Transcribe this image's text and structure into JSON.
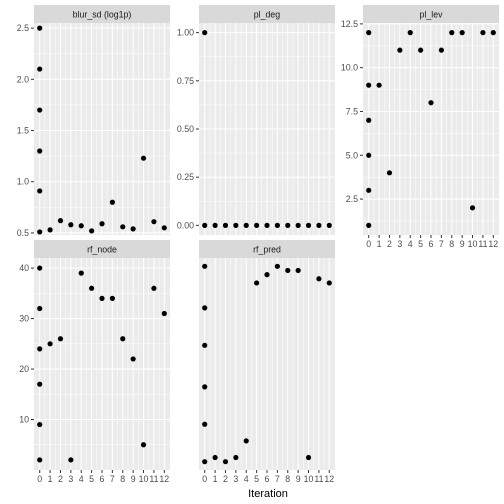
{
  "chart_data": {
    "type": "scatter",
    "layout": "facet-wrap",
    "xlabel": "Iteration",
    "x_ticks": [
      "0",
      "1",
      "2",
      "3",
      "4",
      "5",
      "6",
      "7",
      "8",
      "9",
      "10",
      "11",
      "12"
    ],
    "xlim": [
      0,
      12
    ],
    "point_color": "#000000",
    "panel_color": "#ebebeb",
    "strip_color": "#d9d9d9",
    "grid": true,
    "panels": [
      {
        "strip": "blur_sd (log1p)",
        "ylim": [
          0.48,
          2.55
        ],
        "y_ticks": [
          0.5,
          1.0,
          1.5,
          2.0,
          2.5
        ],
        "y_tick_labels": [
          "0.5",
          "1.0",
          "1.5",
          "2.0",
          "2.5"
        ],
        "points": [
          [
            0,
            2.5
          ],
          [
            0,
            2.1
          ],
          [
            0,
            1.7
          ],
          [
            0,
            1.3
          ],
          [
            0,
            0.91
          ],
          [
            0,
            0.51
          ],
          [
            1,
            0.53
          ],
          [
            2,
            0.62
          ],
          [
            3,
            0.58
          ],
          [
            4,
            0.57
          ],
          [
            5,
            0.52
          ],
          [
            6,
            0.59
          ],
          [
            7,
            0.8
          ],
          [
            8,
            0.56
          ],
          [
            9,
            0.54
          ],
          [
            10,
            1.23
          ],
          [
            11,
            0.61
          ],
          [
            12,
            0.55
          ]
        ]
      },
      {
        "strip": "pl_deg",
        "ylim": [
          -0.05,
          1.05
        ],
        "y_ticks": [
          0.0,
          0.25,
          0.5,
          0.75,
          1.0
        ],
        "y_tick_labels": [
          "0.00",
          "0.25",
          "0.50",
          "0.75",
          "1.00"
        ],
        "points": [
          [
            0,
            1
          ],
          [
            0,
            0
          ],
          [
            1,
            0
          ],
          [
            2,
            0
          ],
          [
            3,
            0
          ],
          [
            4,
            0
          ],
          [
            5,
            0
          ],
          [
            6,
            0
          ],
          [
            7,
            0
          ],
          [
            8,
            0
          ],
          [
            9,
            0
          ],
          [
            10,
            0
          ],
          [
            11,
            0
          ],
          [
            12,
            0
          ]
        ]
      },
      {
        "strip": "pl_lev",
        "ylim": [
          0.45,
          12.55
        ],
        "y_ticks": [
          2.5,
          5.0,
          7.5,
          10.0,
          12.5
        ],
        "y_tick_labels": [
          "2.5",
          "5.0",
          "7.5",
          "10.0",
          "12.5"
        ],
        "points": [
          [
            0,
            12
          ],
          [
            0,
            9
          ],
          [
            0,
            7
          ],
          [
            0,
            5
          ],
          [
            0,
            3
          ],
          [
            0,
            1
          ],
          [
            1,
            9
          ],
          [
            2,
            4
          ],
          [
            3,
            11
          ],
          [
            4,
            12
          ],
          [
            5,
            11
          ],
          [
            6,
            8
          ],
          [
            7,
            11
          ],
          [
            8,
            12
          ],
          [
            9,
            12
          ],
          [
            10,
            2
          ],
          [
            11,
            12
          ],
          [
            12,
            12
          ]
        ]
      },
      {
        "strip": "rf_node",
        "ylim": [
          0,
          42
        ],
        "y_ticks": [
          10,
          20,
          30,
          40
        ],
        "y_tick_labels": [
          "10",
          "20",
          "30",
          "40"
        ],
        "points": [
          [
            0,
            40
          ],
          [
            0,
            32
          ],
          [
            0,
            24
          ],
          [
            0,
            17
          ],
          [
            0,
            9
          ],
          [
            0,
            2
          ],
          [
            1,
            25
          ],
          [
            2,
            26
          ],
          [
            3,
            2
          ],
          [
            4,
            39
          ],
          [
            5,
            36
          ],
          [
            6,
            34
          ],
          [
            7,
            34
          ],
          [
            8,
            26
          ],
          [
            9,
            22
          ],
          [
            10,
            5
          ],
          [
            11,
            36
          ],
          [
            12,
            31
          ]
        ]
      },
      {
        "strip": "rf_pred",
        "ylim": [
          -1,
          50
        ],
        "y_ticks": [],
        "y_tick_labels": [],
        "points": [
          [
            0,
            48
          ],
          [
            0,
            38
          ],
          [
            0,
            29
          ],
          [
            0,
            19
          ],
          [
            0,
            10
          ],
          [
            0,
            1
          ],
          [
            1,
            2
          ],
          [
            2,
            1
          ],
          [
            3,
            2
          ],
          [
            4,
            6
          ],
          [
            5,
            44
          ],
          [
            6,
            46
          ],
          [
            7,
            48
          ],
          [
            8,
            47
          ],
          [
            9,
            47
          ],
          [
            10,
            2
          ],
          [
            11,
            45
          ],
          [
            12,
            44
          ]
        ]
      }
    ]
  }
}
